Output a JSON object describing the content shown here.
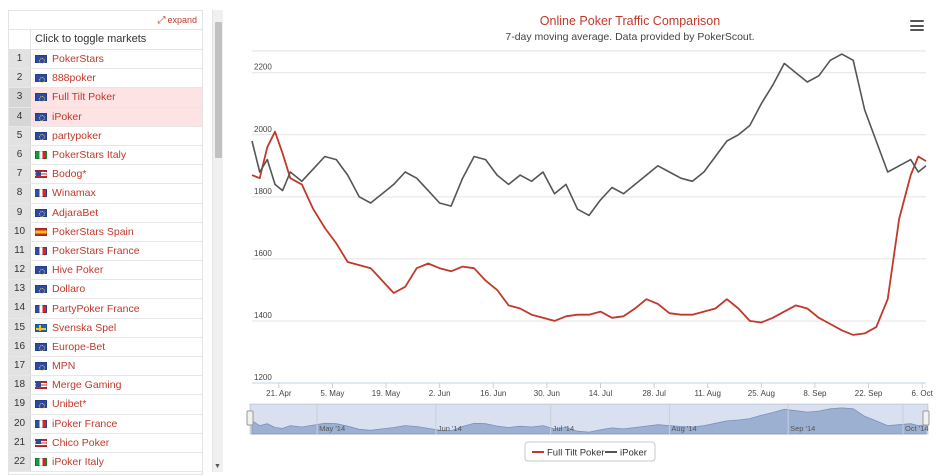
{
  "left_panel": {
    "expand_label": "expand",
    "toggle_label": "Click to toggle markets",
    "markets": [
      {
        "num": "1",
        "name": "PokerStars",
        "flag": "eu",
        "selected": false
      },
      {
        "num": "2",
        "name": "888poker",
        "flag": "eu",
        "selected": false
      },
      {
        "num": "3",
        "name": "Full Tilt Poker",
        "flag": "eu",
        "selected": true
      },
      {
        "num": "4",
        "name": "iPoker",
        "flag": "eu",
        "selected": true
      },
      {
        "num": "5",
        "name": "partypoker",
        "flag": "eu",
        "selected": false
      },
      {
        "num": "6",
        "name": "PokerStars Italy",
        "flag": "it",
        "selected": false
      },
      {
        "num": "7",
        "name": "Bodog*",
        "flag": "us",
        "selected": false
      },
      {
        "num": "8",
        "name": "Winamax",
        "flag": "fr",
        "selected": false
      },
      {
        "num": "9",
        "name": "AdjaraBet",
        "flag": "eu",
        "selected": false
      },
      {
        "num": "10",
        "name": "PokerStars Spain",
        "flag": "es",
        "selected": false
      },
      {
        "num": "11",
        "name": "PokerStars France",
        "flag": "fr",
        "selected": false
      },
      {
        "num": "12",
        "name": "Hive Poker",
        "flag": "eu",
        "selected": false
      },
      {
        "num": "13",
        "name": "Dollaro",
        "flag": "eu",
        "selected": false
      },
      {
        "num": "14",
        "name": "PartyPoker France",
        "flag": "fr",
        "selected": false
      },
      {
        "num": "15",
        "name": "Svenska Spel",
        "flag": "se",
        "selected": false
      },
      {
        "num": "16",
        "name": "Europe-Bet",
        "flag": "eu",
        "selected": false
      },
      {
        "num": "17",
        "name": "MPN",
        "flag": "eu",
        "selected": false
      },
      {
        "num": "18",
        "name": "Merge Gaming",
        "flag": "us",
        "selected": false
      },
      {
        "num": "19",
        "name": "Unibet*",
        "flag": "eu",
        "selected": false
      },
      {
        "num": "20",
        "name": "iPoker France",
        "flag": "fr",
        "selected": false
      },
      {
        "num": "21",
        "name": "Chico Poker",
        "flag": "us",
        "selected": false
      },
      {
        "num": "22",
        "name": "iPoker Italy",
        "flag": "it",
        "selected": false
      }
    ]
  },
  "chart": {
    "title": "Online Poker Traffic Comparison",
    "subtitle": "7-day moving average. Data provided by PokerScout.",
    "menu_icon": "hamburger-menu-icon"
  },
  "chart_data": {
    "type": "line",
    "x": [
      "2014-04-14",
      "2014-04-16",
      "2014-04-18",
      "2014-04-20",
      "2014-04-22",
      "2014-04-24",
      "2014-04-27",
      "2014-04-30",
      "2014-05-03",
      "2014-05-06",
      "2014-05-09",
      "2014-05-12",
      "2014-05-15",
      "2014-05-18",
      "2014-05-21",
      "2014-05-24",
      "2014-05-27",
      "2014-05-30",
      "2014-06-02",
      "2014-06-05",
      "2014-06-08",
      "2014-06-11",
      "2014-06-14",
      "2014-06-17",
      "2014-06-20",
      "2014-06-23",
      "2014-06-26",
      "2014-06-29",
      "2014-07-02",
      "2014-07-05",
      "2014-07-08",
      "2014-07-11",
      "2014-07-14",
      "2014-07-17",
      "2014-07-20",
      "2014-07-23",
      "2014-07-26",
      "2014-07-29",
      "2014-08-01",
      "2014-08-04",
      "2014-08-07",
      "2014-08-10",
      "2014-08-13",
      "2014-08-16",
      "2014-08-19",
      "2014-08-22",
      "2014-08-25",
      "2014-08-28",
      "2014-08-31",
      "2014-09-03",
      "2014-09-06",
      "2014-09-09",
      "2014-09-12",
      "2014-09-15",
      "2014-09-18",
      "2014-09-21",
      "2014-09-24",
      "2014-09-27",
      "2014-09-30",
      "2014-10-03",
      "2014-10-05",
      "2014-10-07"
    ],
    "series": [
      {
        "name": "Full Tilt Poker",
        "color": "#c0392b",
        "values": [
          1870,
          1860,
          1960,
          2010,
          1940,
          1860,
          1840,
          1760,
          1700,
          1650,
          1590,
          1580,
          1570,
          1530,
          1490,
          1510,
          1570,
          1585,
          1570,
          1560,
          1575,
          1570,
          1530,
          1500,
          1450,
          1440,
          1420,
          1410,
          1400,
          1415,
          1420,
          1420,
          1430,
          1410,
          1415,
          1440,
          1470,
          1455,
          1425,
          1420,
          1420,
          1430,
          1440,
          1470,
          1440,
          1400,
          1395,
          1410,
          1430,
          1450,
          1440,
          1410,
          1390,
          1370,
          1355,
          1360,
          1380,
          1470,
          1730,
          1870,
          1930,
          1915
        ]
      },
      {
        "name": "iPoker",
        "color": "#555555",
        "values": [
          1980,
          1880,
          1920,
          1840,
          1820,
          1880,
          1850,
          1890,
          1930,
          1920,
          1870,
          1800,
          1780,
          1810,
          1840,
          1880,
          1860,
          1820,
          1780,
          1770,
          1860,
          1930,
          1920,
          1870,
          1840,
          1870,
          1850,
          1880,
          1810,
          1840,
          1760,
          1740,
          1790,
          1830,
          1810,
          1840,
          1870,
          1900,
          1880,
          1860,
          1850,
          1880,
          1930,
          1980,
          2000,
          2030,
          2100,
          2160,
          2230,
          2200,
          2170,
          2190,
          2240,
          2260,
          2240,
          2080,
          1980,
          1880,
          1900,
          1920,
          1880,
          1900
        ]
      }
    ],
    "y_ticks": [
      1200,
      1400,
      1600,
      1800,
      2000,
      2200
    ],
    "ylim": [
      1200,
      2270
    ],
    "x_ticks": [
      "21. Apr",
      "5. May",
      "19. May",
      "2. Jun",
      "16. Jun",
      "30. Jun",
      "14. Jul",
      "28. Jul",
      "11. Aug",
      "25. Aug",
      "8. Sep",
      "22. Sep",
      "6. Oct"
    ],
    "x_tick_dates": [
      "2014-04-21",
      "2014-05-05",
      "2014-05-19",
      "2014-06-02",
      "2014-06-16",
      "2014-06-30",
      "2014-07-14",
      "2014-07-28",
      "2014-08-11",
      "2014-08-25",
      "2014-09-08",
      "2014-09-22",
      "2014-10-06"
    ],
    "navigator_labels": [
      "May '14",
      "Jun '14",
      "Jul '14",
      "Aug '14",
      "Sep '14",
      "Oct '14"
    ],
    "navigator_dates": [
      "2014-05-01",
      "2014-06-01",
      "2014-07-01",
      "2014-08-01",
      "2014-09-01",
      "2014-10-01"
    ],
    "legend": [
      "Full Tilt Poker",
      "iPoker"
    ],
    "legend_position": "bottom-center",
    "grid": true
  }
}
